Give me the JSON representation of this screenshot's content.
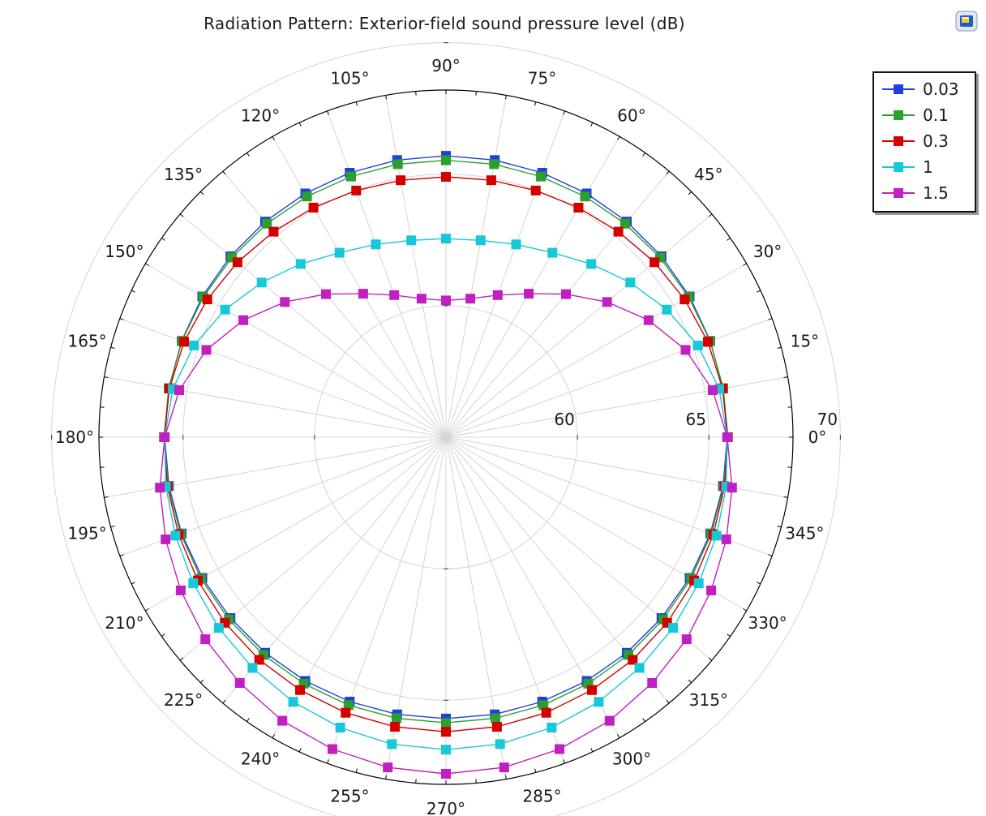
{
  "chart_data": {
    "type": "polar-line",
    "title": "Radiation Pattern: Exterior-field sound pressure level (dB)",
    "angle_ticks": [
      "0°",
      "15°",
      "30°",
      "45°",
      "60°",
      "75°",
      "90°",
      "105°",
      "120°",
      "135°",
      "150°",
      "165°",
      "180°",
      "195°",
      "210°",
      "225°",
      "240°",
      "255°",
      "270°",
      "285°",
      "300°",
      "315°",
      "330°",
      "345°"
    ],
    "radial_ticks": [
      "60",
      "65",
      "70"
    ],
    "rlim": [
      55,
      68.2
    ],
    "grid": true,
    "legend_position": "top-right",
    "angles_deg": [
      0,
      10,
      20,
      30,
      40,
      50,
      60,
      70,
      80,
      90,
      100,
      110,
      120,
      130,
      140,
      150,
      160,
      170,
      180,
      190,
      200,
      210,
      220,
      230,
      240,
      250,
      260,
      270,
      280,
      290,
      300,
      310,
      320,
      330,
      340,
      350
    ],
    "series": [
      {
        "name": "0.03",
        "color": "#1f3fe0",
        "values": [
          65.7,
          65.7,
          65.7,
          65.7,
          65.7,
          65.7,
          65.7,
          65.7,
          65.7,
          65.7,
          65.7,
          65.7,
          65.7,
          65.7,
          65.7,
          65.7,
          65.7,
          65.7,
          65.7,
          65.7,
          65.7,
          65.7,
          65.7,
          65.7,
          65.7,
          65.7,
          65.7,
          65.7,
          65.7,
          65.7,
          65.7,
          65.7,
          65.7,
          65.7,
          65.7,
          65.7
        ]
      },
      {
        "name": "0.1",
        "color": "#2ca02c",
        "values": [
          65.72,
          65.71,
          65.69,
          65.66,
          65.63,
          65.6,
          65.57,
          65.55,
          65.54,
          65.53,
          65.54,
          65.55,
          65.57,
          65.6,
          65.63,
          65.66,
          65.69,
          65.71,
          65.72,
          65.73,
          65.74,
          65.76,
          65.78,
          65.8,
          65.82,
          65.84,
          65.85,
          65.86,
          65.85,
          65.84,
          65.82,
          65.8,
          65.78,
          65.76,
          65.74,
          65.73
        ]
      },
      {
        "name": "0.3",
        "color": "#d40000",
        "values": [
          65.72,
          65.68,
          65.6,
          65.48,
          65.35,
          65.2,
          65.08,
          64.98,
          64.92,
          64.9,
          64.92,
          64.98,
          65.08,
          65.2,
          65.35,
          65.48,
          65.6,
          65.68,
          65.72,
          65.76,
          65.82,
          65.9,
          65.98,
          66.05,
          66.1,
          66.15,
          66.18,
          66.2,
          66.18,
          66.15,
          66.1,
          66.05,
          65.98,
          65.9,
          65.82,
          65.76
        ]
      },
      {
        "name": "1",
        "color": "#17c8d8",
        "values": [
          65.7,
          65.55,
          65.2,
          64.7,
          64.15,
          63.6,
          63.1,
          62.8,
          62.6,
          62.55,
          62.6,
          62.8,
          63.1,
          63.6,
          64.15,
          64.7,
          65.2,
          65.55,
          65.7,
          65.82,
          65.95,
          66.1,
          66.28,
          66.45,
          66.62,
          66.75,
          66.85,
          66.88,
          66.85,
          66.75,
          66.62,
          66.45,
          66.28,
          66.1,
          65.95,
          65.82
        ]
      },
      {
        "name": "1.5",
        "color": "#c020c0",
        "values": [
          65.7,
          65.3,
          64.7,
          63.9,
          63.0,
          62.1,
          61.3,
          60.75,
          60.35,
          60.2,
          60.35,
          60.75,
          61.3,
          62.1,
          63.0,
          63.9,
          64.7,
          65.3,
          65.7,
          66.05,
          66.35,
          66.65,
          66.95,
          67.2,
          67.45,
          67.62,
          67.75,
          67.8,
          67.75,
          67.62,
          67.45,
          67.2,
          66.95,
          66.65,
          66.35,
          66.05
        ]
      }
    ]
  }
}
